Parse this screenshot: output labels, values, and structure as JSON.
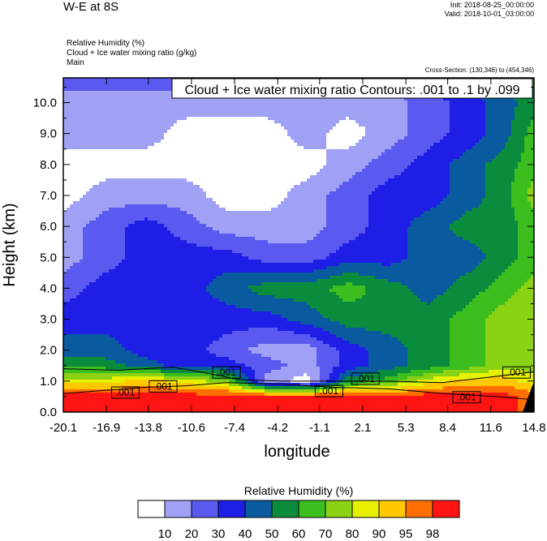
{
  "header": {
    "title": "W-E at 8S",
    "init": "Init: 2018-08-25_00:00:00",
    "valid": "Valid: 2018-10-01_03:00:00",
    "variables": [
      "Relative Humidity   (%)",
      "Cloud + Ice water mixing ratio   (g/kg)",
      "Main"
    ],
    "cross_section": "Cross-Section: (130,346) to (454,346)"
  },
  "chart_data": {
    "type": "heatmap",
    "title": "W-E at 8S",
    "xlabel": "longitude",
    "ylabel": "Height (km)",
    "x_ticks": [
      "-20.1",
      "-16.9",
      "-13.8",
      "-10.6",
      "-7.4",
      "-4.2",
      "-1.1",
      "2.1",
      "5.3",
      "8.4",
      "11.6",
      "14.8"
    ],
    "y_ticks": [
      "0.0",
      "1.0",
      "2.0",
      "3.0",
      "4.0",
      "5.0",
      "6.0",
      "7.0",
      "8.0",
      "9.0",
      "10.0"
    ],
    "xlim": [
      -20.1,
      14.8
    ],
    "ylim": [
      0.0,
      10.8
    ],
    "contour_title": "Cloud + Ice water mixing ratio Contours: .001 to .1 by .099",
    "contour_labels": [
      {
        "text": ".001",
        "x": -16.4,
        "y": 0.55
      },
      {
        "text": ".001",
        "x": -13.6,
        "y": 0.75
      },
      {
        "text": ".001",
        "x": -8.9,
        "y": 1.2
      },
      {
        "text": ".001",
        "x": -1.3,
        "y": 0.6
      },
      {
        "text": ".001",
        "x": 1.4,
        "y": 1.0
      },
      {
        "text": ".001",
        "x": 8.9,
        "y": 0.4
      },
      {
        "text": ".001",
        "x": 12.6,
        "y": 1.2
      }
    ],
    "colorbar": {
      "title": "Relative Humidity  (%)",
      "levels": [
        "10",
        "20",
        "30",
        "40",
        "50",
        "60",
        "70",
        "80",
        "90",
        "95",
        "98"
      ],
      "colors": [
        "#ffffff",
        "#a0a0f5",
        "#5a5af0",
        "#1e1ee6",
        "#0a5aa0",
        "#0a8c3c",
        "#3cbe1e",
        "#8cd214",
        "#e6f000",
        "#ffc800",
        "#ff6e00",
        "#ff1414"
      ]
    },
    "rh_grid": {
      "x": [
        -20.1,
        -17,
        -14,
        -11,
        -8,
        -5,
        -2,
        1,
        4,
        7,
        10,
        12.5,
        14.8
      ],
      "y": [
        0.0,
        0.5,
        1.0,
        1.5,
        2.0,
        3.0,
        4.0,
        5.0,
        6.0,
        7.0,
        8.0,
        9.0,
        10.0,
        10.8
      ],
      "values": [
        [
          11,
          11,
          11,
          11,
          11,
          11,
          11,
          11,
          11,
          11,
          11,
          11,
          10
        ],
        [
          11,
          11,
          11,
          11,
          11,
          11,
          11,
          11,
          11,
          11,
          11,
          11,
          10
        ],
        [
          8,
          8,
          9,
          8,
          7,
          1,
          0,
          5,
          6,
          8,
          9,
          9,
          8
        ],
        [
          5,
          5,
          4,
          3,
          3,
          2,
          1,
          3,
          4,
          5,
          6,
          7,
          7
        ],
        [
          4,
          4,
          3,
          3,
          2,
          1,
          1,
          3,
          4,
          5,
          6,
          7,
          7
        ],
        [
          3,
          3,
          3,
          3,
          3,
          3,
          4,
          5,
          5,
          5,
          6,
          7,
          7
        ],
        [
          2,
          3,
          3,
          3,
          4,
          5,
          5,
          6,
          5,
          4,
          5,
          6,
          7
        ],
        [
          1,
          2,
          3,
          3,
          3,
          2,
          2,
          3,
          3,
          4,
          4,
          5,
          6
        ],
        [
          1,
          2,
          3,
          2,
          1,
          1,
          1,
          2,
          3,
          4,
          5,
          5,
          6
        ],
        [
          0,
          1,
          1,
          1,
          0,
          0,
          1,
          2,
          3,
          3,
          4,
          5,
          7
        ],
        [
          0,
          0,
          0,
          0,
          0,
          0,
          0,
          1,
          2,
          3,
          4,
          5,
          6
        ],
        [
          1,
          1,
          1,
          0,
          0,
          0,
          1,
          0,
          1,
          2,
          3,
          4,
          6
        ],
        [
          1,
          1,
          1,
          1,
          1,
          1,
          1,
          1,
          1,
          2,
          3,
          4,
          5
        ],
        [
          2,
          2,
          2,
          2,
          2,
          2,
          1,
          2,
          2,
          3,
          4,
          5,
          6
        ]
      ]
    }
  }
}
